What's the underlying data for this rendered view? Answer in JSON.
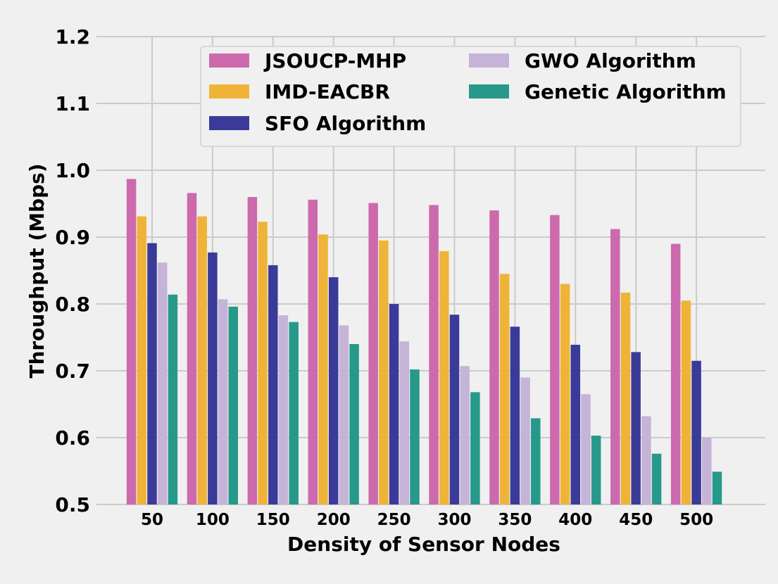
{
  "chart_data": {
    "type": "bar",
    "title": "",
    "xlabel": "Density of Sensor Nodes",
    "ylabel": "Throughput (Mbps)",
    "ylim": [
      0.5,
      1.2
    ],
    "yticks": [
      "0.5",
      "0.6",
      "0.7",
      "0.8",
      "0.9",
      "1.0",
      "1.1",
      "1.2"
    ],
    "grid": true,
    "legend_position": "top-right",
    "categories": [
      "50",
      "100",
      "150",
      "200",
      "250",
      "300",
      "350",
      "400",
      "450",
      "500"
    ],
    "series": [
      {
        "name": "JSOUCP-MHP",
        "color": "#cc6aad",
        "values": [
          0.987,
          0.966,
          0.96,
          0.956,
          0.951,
          0.948,
          0.94,
          0.933,
          0.912,
          0.89
        ]
      },
      {
        "name": "IMD-EACBR",
        "color": "#efb437",
        "values": [
          0.931,
          0.931,
          0.923,
          0.904,
          0.895,
          0.879,
          0.845,
          0.83,
          0.817,
          0.805
        ]
      },
      {
        "name": "SFO Algorithm",
        "color": "#3a3b98",
        "values": [
          0.891,
          0.877,
          0.858,
          0.84,
          0.8,
          0.784,
          0.766,
          0.739,
          0.728,
          0.715
        ]
      },
      {
        "name": "GWO Algorithm",
        "color": "#c5b3d8",
        "values": [
          0.862,
          0.807,
          0.783,
          0.768,
          0.744,
          0.707,
          0.69,
          0.665,
          0.632,
          0.6
        ]
      },
      {
        "name": "Genetic Algorithm",
        "color": "#27998a",
        "values": [
          0.814,
          0.796,
          0.773,
          0.74,
          0.702,
          0.668,
          0.629,
          0.603,
          0.576,
          0.549
        ]
      }
    ]
  }
}
